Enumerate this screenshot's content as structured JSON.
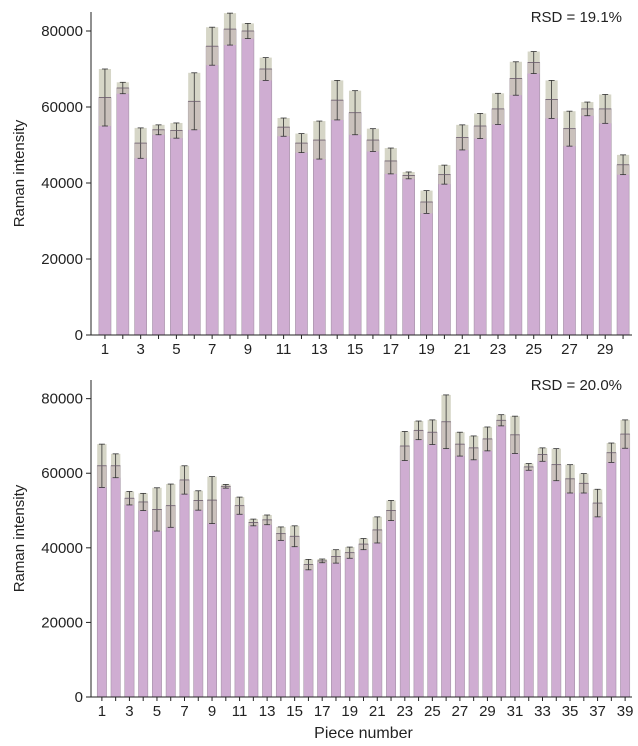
{
  "chart_data": [
    {
      "type": "bar",
      "annotation": "RSD = 19.1%",
      "ylabel": "Raman intensity",
      "xlabel": "",
      "ylim": [
        0,
        85000
      ],
      "yticks": [
        0,
        20000,
        40000,
        60000,
        80000
      ],
      "ytick_labels": [
        "0",
        "20000",
        "40000",
        "60000",
        "80000"
      ],
      "xtick_labels": [
        "1",
        "3",
        "5",
        "7",
        "9",
        "11",
        "13",
        "15",
        "17",
        "19",
        "21",
        "23",
        "25",
        "27",
        "29"
      ],
      "categories": [
        1,
        2,
        3,
        4,
        5,
        6,
        7,
        8,
        9,
        10,
        11,
        12,
        13,
        14,
        15,
        16,
        17,
        18,
        19,
        20,
        21,
        22,
        23,
        24,
        25,
        26,
        27,
        28,
        29,
        30
      ],
      "values": [
        62500,
        65000,
        50500,
        54000,
        53800,
        61500,
        76000,
        80500,
        80000,
        70000,
        54700,
        50500,
        51300,
        61800,
        58500,
        51300,
        45800,
        42000,
        35000,
        42200,
        52000,
        55000,
        59500,
        67500,
        71700,
        62000,
        54300,
        59500,
        59500,
        44800
      ],
      "errors": [
        7500,
        1500,
        4000,
        1300,
        2000,
        7500,
        5000,
        4200,
        2000,
        3000,
        2400,
        2500,
        5000,
        5200,
        5800,
        3000,
        3400,
        900,
        3000,
        2500,
        3300,
        3300,
        4100,
        4400,
        2900,
        5000,
        4600,
        1800,
        3800,
        2600
      ],
      "bar_color": "#cfadd2",
      "error_color": "#c8c8b4"
    },
    {
      "type": "bar",
      "annotation": "RSD = 20.0%",
      "ylabel": "Raman intensity",
      "xlabel": "Piece number",
      "ylim": [
        0,
        85000
      ],
      "yticks": [
        0,
        20000,
        40000,
        60000,
        80000
      ],
      "ytick_labels": [
        "0",
        "20000",
        "40000",
        "60000",
        "80000"
      ],
      "xtick_labels": [
        "1",
        "3",
        "5",
        "7",
        "9",
        "11",
        "13",
        "15",
        "17",
        "19",
        "21",
        "23",
        "25",
        "27",
        "29",
        "31",
        "33",
        "35",
        "37",
        "39"
      ],
      "categories": [
        1,
        2,
        3,
        4,
        5,
        6,
        7,
        8,
        9,
        10,
        11,
        12,
        13,
        14,
        15,
        16,
        17,
        18,
        19,
        20,
        21,
        22,
        23,
        24,
        25,
        26,
        27,
        28,
        29,
        30,
        31,
        32,
        33,
        34,
        35,
        36,
        37,
        38,
        39
      ],
      "values": [
        62000,
        62000,
        53300,
        52300,
        50300,
        51300,
        58200,
        52700,
        52800,
        56500,
        51300,
        46800,
        47500,
        43800,
        43100,
        35500,
        36500,
        37700,
        38700,
        41000,
        44800,
        50000,
        67300,
        71500,
        71000,
        73800,
        67800,
        66800,
        69200,
        74200,
        70300,
        61700,
        65000,
        62300,
        58500,
        57300,
        52000,
        65500,
        70500
      ],
      "errors": [
        5800,
        3200,
        1800,
        2300,
        5800,
        5800,
        3800,
        2600,
        6300,
        500,
        2300,
        900,
        1300,
        1800,
        2800,
        1400,
        500,
        1800,
        1500,
        1500,
        3500,
        2700,
        3900,
        2500,
        3300,
        7200,
        3200,
        3200,
        3200,
        1500,
        5000,
        900,
        1800,
        4300,
        3800,
        2600,
        3700,
        2600,
        3800
      ],
      "bar_color": "#cfadd2",
      "error_color": "#c8c8b4"
    }
  ]
}
